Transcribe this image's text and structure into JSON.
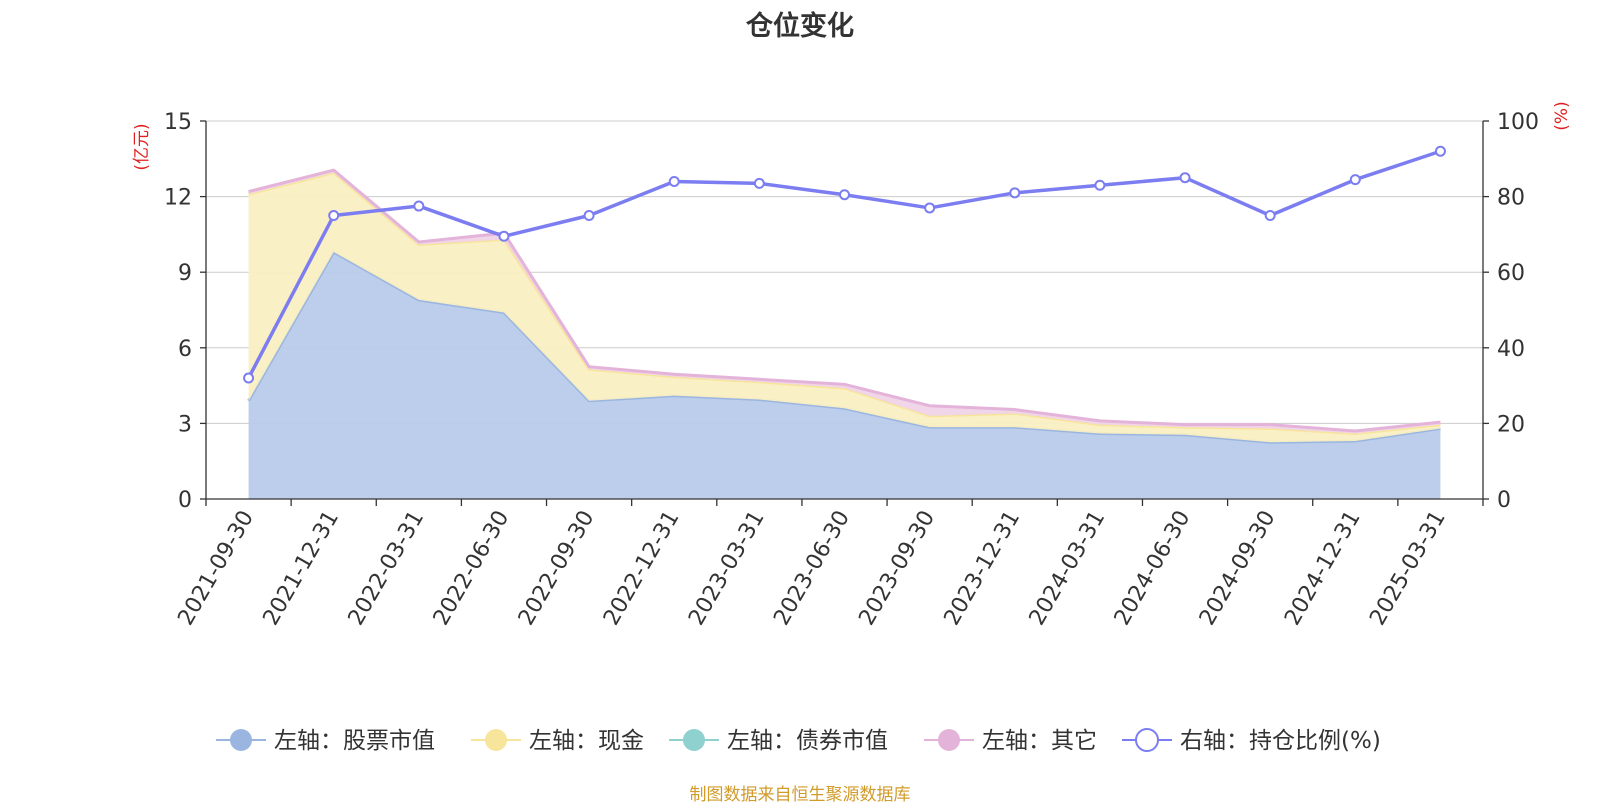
{
  "title": "仓位变化",
  "source_note": "制图数据来自恒生聚源数据库",
  "left_unit": "(亿元)",
  "right_unit": "(%)",
  "colors": {
    "stock": "#9ab6e0",
    "stock_fill": "#b8cbea",
    "cash": "#f7e59c",
    "cash_fill": "#faefc2",
    "bond": "#8fd1cf",
    "other": "#e4b3d9",
    "other_fill": "#f0d4e9",
    "ratio": "#7b7df0",
    "unit": "#e02020",
    "axis": "#333333",
    "grid": "#cccccc"
  },
  "legend": [
    {
      "key": "stock",
      "label": "左轴：股票市值",
      "icon": "filled-circle-icon"
    },
    {
      "key": "cash",
      "label": "左轴：现金",
      "icon": "filled-circle-icon"
    },
    {
      "key": "bond",
      "label": "左轴：债券市值",
      "icon": "filled-circle-icon"
    },
    {
      "key": "other",
      "label": "左轴：其它",
      "icon": "filled-circle-icon"
    },
    {
      "key": "ratio",
      "label": "右轴：持仓比例(%)",
      "icon": "hollow-circle-icon"
    }
  ],
  "chart_data": {
    "type": "area",
    "categories": [
      "2021-09-30",
      "2021-12-31",
      "2022-03-31",
      "2022-06-30",
      "2022-09-30",
      "2022-12-31",
      "2023-03-31",
      "2023-06-30",
      "2023-09-30",
      "2023-12-31",
      "2024-03-31",
      "2024-06-30",
      "2024-09-30",
      "2024-12-31",
      "2025-03-31"
    ],
    "y_left": {
      "ticks": [
        0,
        3,
        6,
        9,
        12,
        15
      ],
      "range": [
        0,
        15
      ],
      "unit": "亿元"
    },
    "y_right": {
      "ticks": [
        0,
        20,
        40,
        60,
        80,
        100
      ],
      "range": [
        0,
        100
      ],
      "unit": "%"
    },
    "stacked_series": [
      {
        "key": "stock",
        "name": "左轴：股票市值",
        "axis": "left",
        "values": [
          3.9,
          9.8,
          7.9,
          7.4,
          3.9,
          4.1,
          3.95,
          3.6,
          2.85,
          2.85,
          2.6,
          2.55,
          2.25,
          2.3,
          2.8
        ]
      },
      {
        "key": "cash",
        "name": "左轴：现金",
        "axis": "left",
        "values": [
          8.2,
          3.15,
          2.2,
          2.9,
          1.25,
          0.75,
          0.7,
          0.8,
          0.45,
          0.55,
          0.35,
          0.3,
          0.55,
          0.3,
          0.15
        ]
      },
      {
        "key": "bond",
        "name": "左轴：债券市值",
        "axis": "left",
        "values": [
          0,
          0,
          0,
          0,
          0,
          0,
          0,
          0,
          0,
          0,
          0,
          0,
          0,
          0,
          0
        ]
      },
      {
        "key": "other",
        "name": "左轴：其它",
        "axis": "left",
        "values": [
          0.1,
          0.1,
          0.1,
          0.25,
          0.1,
          0.1,
          0.1,
          0.15,
          0.4,
          0.15,
          0.15,
          0.1,
          0.15,
          0.1,
          0.1
        ]
      }
    ],
    "line_series": [
      {
        "key": "ratio",
        "name": "右轴：持仓比例(%)",
        "axis": "right",
        "values": [
          32.0,
          75.0,
          77.5,
          69.5,
          75.0,
          84.0,
          83.5,
          80.5,
          77.0,
          81.0,
          83.0,
          85.0,
          75.0,
          84.5,
          92.0
        ]
      }
    ],
    "grid": true,
    "legend_position": "bottom"
  }
}
